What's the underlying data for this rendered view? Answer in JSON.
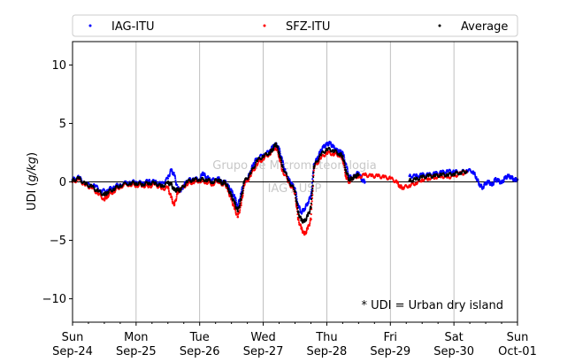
{
  "chart_data": {
    "type": "scatter",
    "ylabel_main": "UDI (",
    "ylabel_unit": "g/kg",
    "ylabel_close": ")",
    "ylim": [
      -12,
      12
    ],
    "yticks": [
      -10,
      -5,
      0,
      5,
      10
    ],
    "ytick_labels": [
      "−10",
      "−5",
      "0",
      "5",
      "10"
    ],
    "xlim_days": [
      0,
      7
    ],
    "xtick_days": [
      0,
      1,
      2,
      3,
      4,
      5,
      6,
      7
    ],
    "xtick_labels_top": [
      "Sun",
      "Mon",
      "Tue",
      "Wed",
      "Thu",
      "Fri",
      "Sat",
      "Sun"
    ],
    "xtick_labels_bottom": [
      "Sep-24",
      "Sep-25",
      "Sep-26",
      "Sep-27",
      "Sep-28",
      "Sep-29",
      "Sep-30",
      "Oct-01"
    ],
    "grid": "vertical",
    "zero_line": true,
    "legend_placement": "top (above plot)",
    "annotation": "* UDI = Urban dry island",
    "watermark_line1": "Grupo de Micrometeorologia",
    "watermark_line2": "IAG / USP",
    "series": [
      {
        "name": "IAG-ITU",
        "color": "#0000ff",
        "points": [
          [
            0.0,
            0.2
          ],
          [
            0.1,
            0.4
          ],
          [
            0.2,
            -0.2
          ],
          [
            0.35,
            -0.3
          ],
          [
            0.45,
            -0.8
          ],
          [
            0.55,
            -0.7
          ],
          [
            0.65,
            -0.4
          ],
          [
            0.75,
            -0.2
          ],
          [
            0.9,
            0.0
          ],
          [
            1.0,
            0.0
          ],
          [
            1.1,
            -0.1
          ],
          [
            1.2,
            0.1
          ],
          [
            1.3,
            0.0
          ],
          [
            1.4,
            -0.2
          ],
          [
            1.5,
            0.3
          ],
          [
            1.55,
            1.0
          ],
          [
            1.6,
            0.6
          ],
          [
            1.65,
            -0.5
          ],
          [
            1.7,
            -0.8
          ],
          [
            1.75,
            -0.3
          ],
          [
            1.8,
            0.1
          ],
          [
            1.9,
            0.3
          ],
          [
            2.0,
            0.2
          ],
          [
            2.05,
            0.8
          ],
          [
            2.1,
            0.4
          ],
          [
            2.15,
            0.3
          ],
          [
            2.25,
            0.1
          ],
          [
            2.3,
            0.3
          ],
          [
            2.35,
            -0.1
          ],
          [
            2.4,
            0.0
          ],
          [
            2.45,
            -0.4
          ],
          [
            2.5,
            -0.8
          ],
          [
            2.55,
            -1.3
          ],
          [
            2.6,
            -2.1
          ],
          [
            2.65,
            -1.0
          ],
          [
            2.7,
            0.0
          ],
          [
            2.75,
            0.2
          ],
          [
            2.8,
            0.9
          ],
          [
            2.85,
            1.6
          ],
          [
            2.9,
            2.0
          ],
          [
            3.0,
            2.3
          ],
          [
            3.1,
            2.6
          ],
          [
            3.15,
            3.0
          ],
          [
            3.2,
            3.2
          ],
          [
            3.25,
            2.8
          ],
          [
            3.3,
            1.8
          ],
          [
            3.35,
            0.8
          ],
          [
            3.4,
            0.2
          ],
          [
            3.45,
            -0.2
          ],
          [
            3.5,
            -0.6
          ],
          [
            3.55,
            -2.0
          ],
          [
            3.6,
            -2.6
          ],
          [
            3.65,
            -2.3
          ],
          [
            3.7,
            -1.8
          ],
          [
            3.75,
            -1.2
          ],
          [
            3.8,
            1.5
          ],
          [
            3.85,
            2.0
          ],
          [
            3.9,
            2.6
          ],
          [
            3.95,
            3.0
          ],
          [
            4.0,
            3.2
          ],
          [
            4.05,
            3.3
          ],
          [
            4.1,
            3.0
          ],
          [
            4.15,
            2.7
          ],
          [
            4.2,
            2.6
          ],
          [
            4.25,
            2.5
          ],
          [
            4.3,
            1.5
          ],
          [
            4.35,
            0.5
          ],
          [
            4.4,
            0.3
          ],
          [
            4.45,
            0.6
          ],
          [
            4.5,
            0.8
          ],
          [
            4.55,
            0.2
          ],
          [
            4.6,
            0.0
          ],
          [
            5.3,
            0.5
          ],
          [
            5.4,
            0.5
          ],
          [
            5.5,
            0.6
          ],
          [
            5.6,
            0.6
          ],
          [
            5.7,
            0.7
          ],
          [
            5.8,
            0.8
          ],
          [
            5.9,
            0.9
          ],
          [
            6.0,
            0.9
          ],
          [
            6.1,
            0.8
          ],
          [
            6.2,
            1.0
          ],
          [
            6.3,
            0.9
          ],
          [
            6.35,
            0.4
          ],
          [
            6.4,
            -0.2
          ],
          [
            6.45,
            -0.5
          ],
          [
            6.5,
            -0.1
          ],
          [
            6.55,
            0.0
          ],
          [
            6.6,
            -0.3
          ],
          [
            6.65,
            0.2
          ],
          [
            6.7,
            0.1
          ],
          [
            6.75,
            -0.1
          ],
          [
            6.8,
            0.3
          ],
          [
            6.85,
            0.5
          ],
          [
            6.9,
            0.4
          ],
          [
            6.95,
            0.2
          ],
          [
            7.0,
            0.2
          ]
        ]
      },
      {
        "name": "SFZ-ITU",
        "color": "#ff0000",
        "points": [
          [
            0.0,
            0.0
          ],
          [
            0.1,
            0.2
          ],
          [
            0.2,
            -0.3
          ],
          [
            0.3,
            -0.5
          ],
          [
            0.4,
            -1.0
          ],
          [
            0.5,
            -1.5
          ],
          [
            0.55,
            -1.2
          ],
          [
            0.65,
            -0.8
          ],
          [
            0.75,
            -0.4
          ],
          [
            0.9,
            -0.2
          ],
          [
            1.0,
            -0.3
          ],
          [
            1.1,
            -0.3
          ],
          [
            1.2,
            -0.4
          ],
          [
            1.3,
            -0.2
          ],
          [
            1.4,
            -0.6
          ],
          [
            1.5,
            -0.5
          ],
          [
            1.55,
            -1.3
          ],
          [
            1.6,
            -2.0
          ],
          [
            1.65,
            -1.0
          ],
          [
            1.7,
            -0.6
          ],
          [
            1.8,
            -0.2
          ],
          [
            1.9,
            0.0
          ],
          [
            2.0,
            0.1
          ],
          [
            2.1,
            0.0
          ],
          [
            2.2,
            -0.2
          ],
          [
            2.3,
            0.1
          ],
          [
            2.35,
            -0.2
          ],
          [
            2.4,
            -0.1
          ],
          [
            2.45,
            -0.8
          ],
          [
            2.5,
            -1.5
          ],
          [
            2.55,
            -2.3
          ],
          [
            2.6,
            -3.0
          ],
          [
            2.65,
            -2.0
          ],
          [
            2.7,
            -0.3
          ],
          [
            2.8,
            0.5
          ],
          [
            2.9,
            1.5
          ],
          [
            3.0,
            2.0
          ],
          [
            3.1,
            2.4
          ],
          [
            3.2,
            3.0
          ],
          [
            3.25,
            2.2
          ],
          [
            3.3,
            1.0
          ],
          [
            3.4,
            0.0
          ],
          [
            3.5,
            -1.0
          ],
          [
            3.55,
            -3.2
          ],
          [
            3.6,
            -4.0
          ],
          [
            3.65,
            -4.5
          ],
          [
            3.7,
            -4.0
          ],
          [
            3.75,
            -3.2
          ],
          [
            3.8,
            1.2
          ],
          [
            3.9,
            2.0
          ],
          [
            4.0,
            2.5
          ],
          [
            4.1,
            2.4
          ],
          [
            4.2,
            2.3
          ],
          [
            4.25,
            2.0
          ],
          [
            4.3,
            0.5
          ],
          [
            4.35,
            0.0
          ],
          [
            4.4,
            0.3
          ],
          [
            4.45,
            0.5
          ],
          [
            4.5,
            0.4
          ],
          [
            4.6,
            0.6
          ],
          [
            4.7,
            0.5
          ],
          [
            4.8,
            0.5
          ],
          [
            4.9,
            0.4
          ],
          [
            5.0,
            0.3
          ],
          [
            5.1,
            0.0
          ],
          [
            5.15,
            -0.4
          ],
          [
            5.2,
            -0.5
          ],
          [
            5.3,
            -0.3
          ],
          [
            5.4,
            -0.1
          ],
          [
            5.5,
            0.2
          ],
          [
            5.6,
            0.3
          ],
          [
            5.7,
            0.4
          ],
          [
            5.8,
            0.5
          ],
          [
            5.9,
            0.4
          ],
          [
            6.0,
            0.5
          ],
          [
            6.1,
            0.7
          ],
          [
            6.2,
            0.8
          ]
        ]
      },
      {
        "name": "Average",
        "color": "#000000",
        "points": [
          [
            0.0,
            0.1
          ],
          [
            0.1,
            0.3
          ],
          [
            0.2,
            -0.2
          ],
          [
            0.3,
            -0.4
          ],
          [
            0.4,
            -0.8
          ],
          [
            0.5,
            -1.1
          ],
          [
            0.55,
            -0.9
          ],
          [
            0.65,
            -0.6
          ],
          [
            0.75,
            -0.3
          ],
          [
            0.9,
            -0.1
          ],
          [
            1.0,
            -0.1
          ],
          [
            1.1,
            -0.2
          ],
          [
            1.2,
            -0.1
          ],
          [
            1.3,
            -0.1
          ],
          [
            1.4,
            -0.4
          ],
          [
            1.5,
            -0.1
          ],
          [
            1.55,
            -0.2
          ],
          [
            1.6,
            -0.7
          ],
          [
            1.65,
            -0.7
          ],
          [
            1.7,
            -0.7
          ],
          [
            1.8,
            0.0
          ],
          [
            1.9,
            0.2
          ],
          [
            2.0,
            0.2
          ],
          [
            2.1,
            0.2
          ],
          [
            2.2,
            0.0
          ],
          [
            2.3,
            0.2
          ],
          [
            2.35,
            -0.1
          ],
          [
            2.4,
            0.0
          ],
          [
            2.45,
            -0.6
          ],
          [
            2.5,
            -1.2
          ],
          [
            2.55,
            -1.8
          ],
          [
            2.6,
            -2.5
          ],
          [
            2.65,
            -1.5
          ],
          [
            2.7,
            0.0
          ],
          [
            2.8,
            0.7
          ],
          [
            2.9,
            1.8
          ],
          [
            3.0,
            2.2
          ],
          [
            3.1,
            2.5
          ],
          [
            3.15,
            2.8
          ],
          [
            3.2,
            3.3
          ],
          [
            3.25,
            2.5
          ],
          [
            3.3,
            1.4
          ],
          [
            3.4,
            0.1
          ],
          [
            3.5,
            -0.8
          ],
          [
            3.55,
            -2.6
          ],
          [
            3.6,
            -3.3
          ],
          [
            3.65,
            -3.4
          ],
          [
            3.7,
            -2.9
          ],
          [
            3.75,
            -2.2
          ],
          [
            3.8,
            1.3
          ],
          [
            3.9,
            2.3
          ],
          [
            4.0,
            2.8
          ],
          [
            4.1,
            2.7
          ],
          [
            4.2,
            2.4
          ],
          [
            4.25,
            2.2
          ],
          [
            4.3,
            1.0
          ],
          [
            4.35,
            0.2
          ],
          [
            4.4,
            0.3
          ],
          [
            4.45,
            0.5
          ],
          [
            4.5,
            0.6
          ],
          [
            5.3,
            0.1
          ],
          [
            5.4,
            0.2
          ],
          [
            5.5,
            0.4
          ],
          [
            5.6,
            0.5
          ],
          [
            5.7,
            0.5
          ],
          [
            5.8,
            0.6
          ],
          [
            5.9,
            0.6
          ],
          [
            6.0,
            0.7
          ],
          [
            6.1,
            0.8
          ],
          [
            6.2,
            0.9
          ]
        ]
      }
    ]
  }
}
